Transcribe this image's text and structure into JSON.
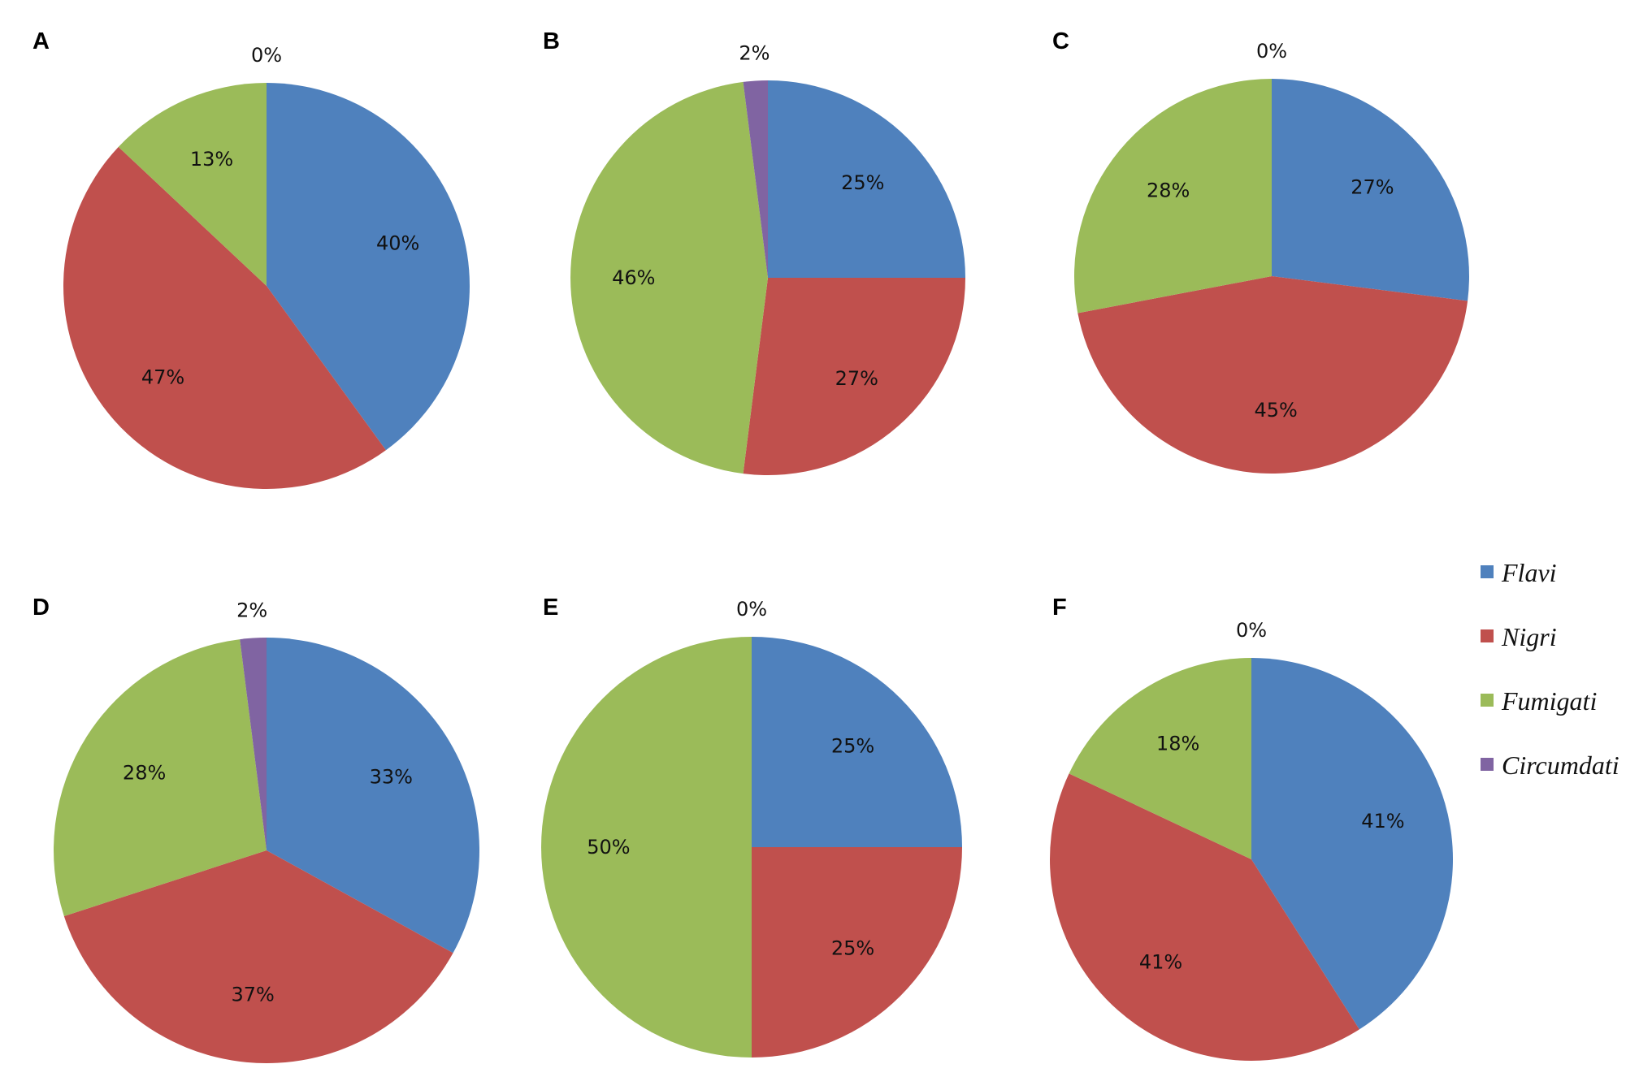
{
  "legend": {
    "items": [
      {
        "label": "Flavi",
        "color": "#4f81bd"
      },
      {
        "label": "Nigri",
        "color": "#c0504d"
      },
      {
        "label": "Fumigati",
        "color": "#9bbb59"
      },
      {
        "label": "Circumdati",
        "color": "#8064a2"
      }
    ]
  },
  "chart_data": [
    {
      "type": "pie",
      "panel": "A",
      "slices": [
        {
          "name": "Flavi",
          "value": 40,
          "label": "40%"
        },
        {
          "name": "Nigri",
          "value": 47,
          "label": "47%"
        },
        {
          "name": "Fumigati",
          "value": 13,
          "label": "13%"
        },
        {
          "name": "Circumdati",
          "value": 0,
          "label": "0%"
        }
      ]
    },
    {
      "type": "pie",
      "panel": "B",
      "slices": [
        {
          "name": "Flavi",
          "value": 25,
          "label": "25%"
        },
        {
          "name": "Nigri",
          "value": 27,
          "label": "27%"
        },
        {
          "name": "Fumigati",
          "value": 46,
          "label": "46%"
        },
        {
          "name": "Circumdati",
          "value": 2,
          "label": "2%"
        }
      ]
    },
    {
      "type": "pie",
      "panel": "C",
      "slices": [
        {
          "name": "Flavi",
          "value": 27,
          "label": "27%"
        },
        {
          "name": "Nigri",
          "value": 45,
          "label": "45%"
        },
        {
          "name": "Fumigati",
          "value": 28,
          "label": "28%"
        },
        {
          "name": "Circumdati",
          "value": 0,
          "label": "0%"
        }
      ]
    },
    {
      "type": "pie",
      "panel": "D",
      "slices": [
        {
          "name": "Flavi",
          "value": 33,
          "label": "33%"
        },
        {
          "name": "Nigri",
          "value": 37,
          "label": "37%"
        },
        {
          "name": "Fumigati",
          "value": 28,
          "label": "28%"
        },
        {
          "name": "Circumdati",
          "value": 2,
          "label": "2%"
        }
      ]
    },
    {
      "type": "pie",
      "panel": "E",
      "slices": [
        {
          "name": "Flavi",
          "value": 25,
          "label": "25%"
        },
        {
          "name": "Nigri",
          "value": 25,
          "label": "25%"
        },
        {
          "name": "Fumigati",
          "value": 50,
          "label": "50%"
        },
        {
          "name": "Circumdati",
          "value": 0,
          "label": "0%"
        }
      ]
    },
    {
      "type": "pie",
      "panel": "F",
      "slices": [
        {
          "name": "Flavi",
          "value": 41,
          "label": "41%"
        },
        {
          "name": "Nigri",
          "value": 41,
          "label": "41%"
        },
        {
          "name": "Fumigati",
          "value": 18,
          "label": "18%"
        },
        {
          "name": "Circumdati",
          "value": 0,
          "label": "0%"
        }
      ]
    }
  ]
}
